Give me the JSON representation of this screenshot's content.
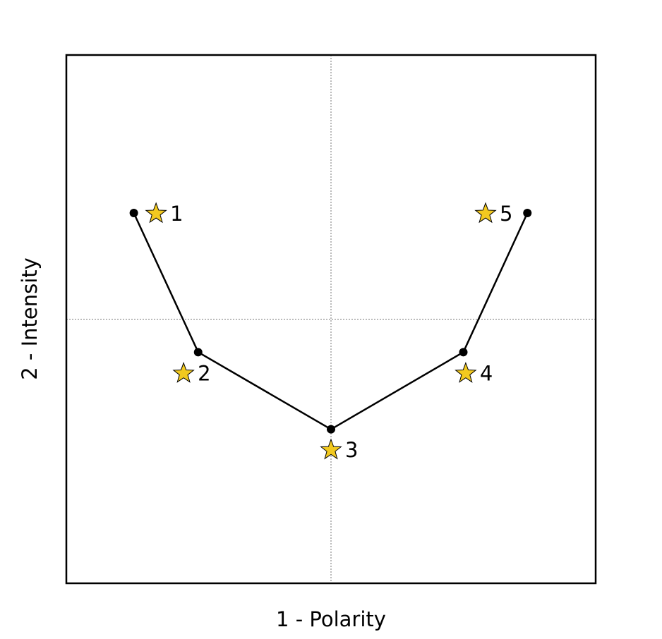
{
  "chart_data": {
    "type": "scatter",
    "title": "",
    "xlabel": "1 - Polarity",
    "ylabel": "2 - Intensity",
    "xlim": [
      -1,
      1
    ],
    "ylim": [
      -1,
      1
    ],
    "ticks_shown": false,
    "center_lines": true,
    "series": [
      {
        "marker": "circle",
        "connected": true,
        "color": "#000000",
        "points": [
          {
            "x": -0.745,
            "y": 0.402
          },
          {
            "x": -0.502,
            "y": -0.125
          },
          {
            "x": 0.0,
            "y": -0.417
          },
          {
            "x": 0.5,
            "y": -0.125
          },
          {
            "x": 0.742,
            "y": 0.402
          }
        ]
      },
      {
        "marker": "star",
        "connected": false,
        "color": "#f2c91f",
        "points": [
          {
            "x": -0.661,
            "y": 0.402,
            "label": "1"
          },
          {
            "x": -0.557,
            "y": -0.203,
            "label": "2"
          },
          {
            "x": 0.0,
            "y": -0.493,
            "label": "3"
          },
          {
            "x": 0.509,
            "y": -0.203,
            "label": "4"
          },
          {
            "x": 0.584,
            "y": 0.402,
            "label": "5"
          }
        ]
      }
    ]
  }
}
